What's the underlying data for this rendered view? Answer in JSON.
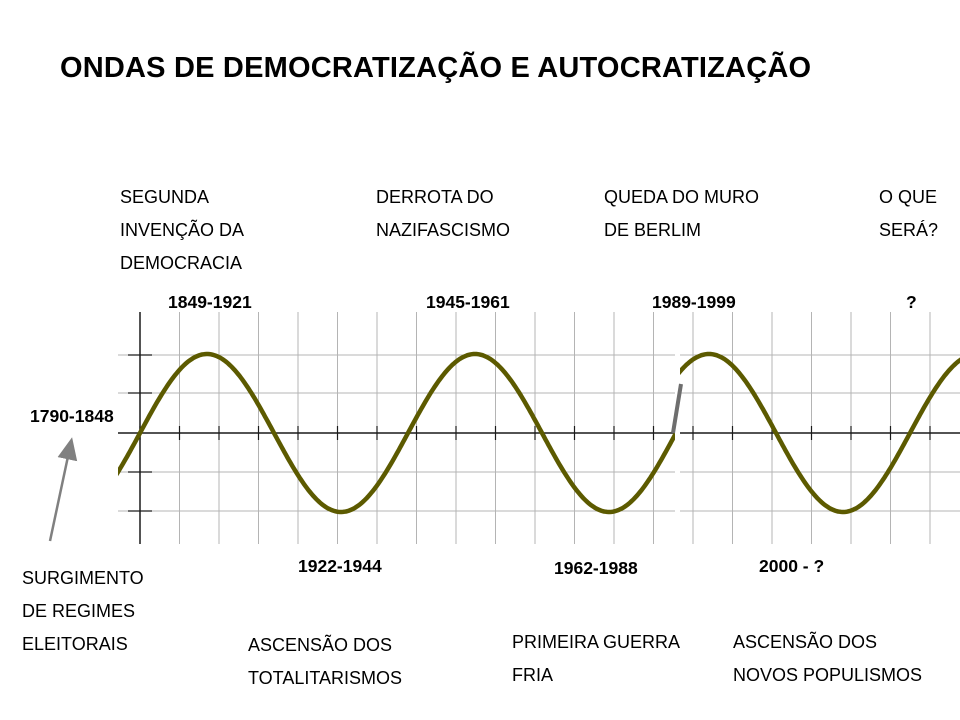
{
  "title": "ONDAS DE DEMOCRATIZAÇÃO E AUTOCRATIZAÇÃO",
  "captions": {
    "top_1": "SEGUNDA\nINVENÇÃO DA\nDEMOCRACIA",
    "top_2": "DERROTA DO\nNAZIFASCISMO",
    "top_3": "QUEDA DO MURO\nDE BERLIM",
    "top_4": "O QUE\nSERÁ?",
    "bottom_left": "SURGIMENTO\nDE REGIMES\nELEITORAIS",
    "bottom_1": "ASCENSÃO DOS\nTOTALITARISMOS",
    "bottom_2": "PRIMEIRA GUERRA\nFRIA",
    "bottom_3": "ASCENSÃO DOS\nNOVOS POPULISMOS"
  },
  "periods": {
    "start": "1790-1848",
    "peak_1": "1849-1921",
    "trough_1": "1922-1944",
    "peak_2": "1945-1961",
    "trough_2": "1962-1988",
    "peak_3": "1989-1999",
    "trough_3": "2000 - ?",
    "peak_4": "?"
  },
  "colors": {
    "wave": "#5c5a00",
    "grid": "#b4b4b4",
    "axis": "#1a1a1a",
    "arrow": "#808080",
    "connector": "#6e6e6e"
  }
}
